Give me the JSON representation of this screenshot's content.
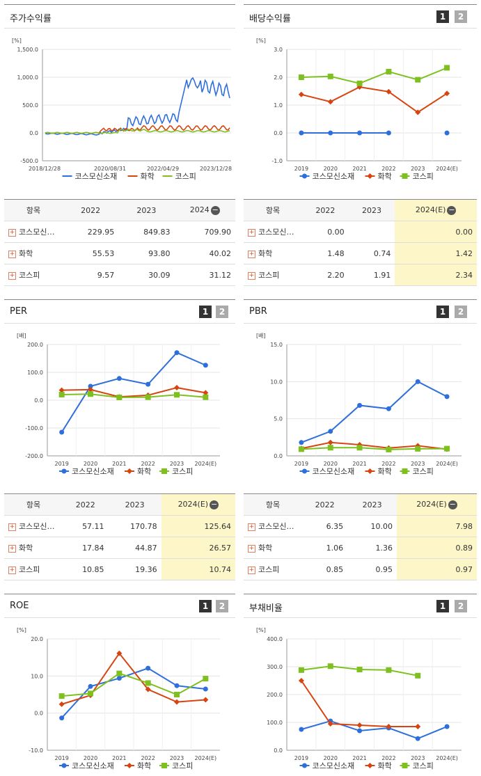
{
  "series_names": [
    "코스모신소재",
    "화학",
    "코스피"
  ],
  "colors": {
    "company": "#2e6fdb",
    "chem": "#d64510",
    "kospi": "#7dc01f"
  },
  "charts": {
    "stock": {
      "title": "주가수익률",
      "unit": "[%]",
      "ylim": [
        -500,
        1500
      ],
      "yticks": [
        "1,500.0",
        "1,000.0",
        "500.0",
        "0.0",
        "-500.0"
      ],
      "xlabels": [
        "2018/12/28",
        "2020/08/31",
        "2022/04/29",
        "2023/12/28"
      ]
    },
    "div": {
      "title": "배당수익률",
      "unit": "[%]",
      "ylim": [
        -1,
        3
      ],
      "yticks": [
        "3.0",
        "2.0",
        "1.0",
        "0.0",
        "-1.0"
      ],
      "categories": [
        "2019",
        "2020",
        "2021",
        "2022",
        "2023",
        "2024(E)"
      ],
      "series": [
        {
          "values": [
            0,
            0,
            0,
            0,
            null,
            0
          ]
        },
        {
          "values": [
            1.38,
            1.12,
            1.65,
            1.48,
            0.74,
            1.42
          ]
        },
        {
          "values": [
            2.0,
            2.03,
            1.78,
            2.2,
            1.91,
            2.34
          ]
        }
      ]
    },
    "per": {
      "title": "PER",
      "unit": "[배]",
      "ylim": [
        -200,
        200
      ],
      "yticks": [
        "200.0",
        "100.0",
        "0.0",
        "-100.0",
        "-200.0"
      ],
      "categories": [
        "2019",
        "2020",
        "2021",
        "2022",
        "2023",
        "2024(E)"
      ],
      "series": [
        {
          "values": [
            -115,
            50,
            78,
            57.11,
            170.78,
            125.64
          ]
        },
        {
          "values": [
            36,
            38,
            12,
            17.84,
            44.87,
            26.57
          ]
        },
        {
          "values": [
            20,
            22,
            10,
            10.85,
            19.36,
            10.74
          ]
        }
      ]
    },
    "pbr": {
      "title": "PBR",
      "unit": "[배]",
      "ylim": [
        0,
        15
      ],
      "yticks": [
        "15.0",
        "10.0",
        "5.0",
        "0.0"
      ],
      "categories": [
        "2019",
        "2020",
        "2021",
        "2022",
        "2023",
        "2024(E)"
      ],
      "series": [
        {
          "values": [
            1.8,
            3.3,
            6.8,
            6.35,
            10.0,
            7.98
          ]
        },
        {
          "values": [
            1.0,
            1.8,
            1.5,
            1.06,
            1.36,
            0.89
          ]
        },
        {
          "values": [
            0.9,
            1.1,
            1.1,
            0.85,
            0.95,
            0.97
          ]
        }
      ]
    },
    "roe": {
      "title": "ROE",
      "unit": "[%]",
      "ylim": [
        -10,
        20
      ],
      "yticks": [
        "20.0",
        "10.0",
        "0.0",
        "-10.0"
      ],
      "categories": [
        "2019",
        "2020",
        "2021",
        "2022",
        "2023",
        "2024(E)"
      ],
      "series": [
        {
          "values": [
            -1.3,
            7.2,
            9.4,
            12.1,
            7.4,
            6.5
          ]
        },
        {
          "values": [
            2.4,
            4.8,
            16.1,
            6.4,
            3.0,
            3.6
          ]
        },
        {
          "values": [
            4.6,
            5.3,
            10.7,
            8.1,
            5.0,
            9.3
          ]
        }
      ]
    },
    "debt": {
      "title": "부채비율",
      "unit": "[%]",
      "ylim": [
        0,
        400
      ],
      "yticks": [
        "400.0",
        "300.0",
        "200.0",
        "100.0",
        "0.0"
      ],
      "categories": [
        "2019",
        "2020",
        "2021",
        "2022",
        "2023",
        "2024(E)"
      ],
      "series": [
        {
          "values": [
            75,
            105,
            70,
            80,
            42,
            85
          ]
        },
        {
          "values": [
            250,
            95,
            90,
            85,
            85,
            null
          ]
        },
        {
          "values": [
            288,
            302,
            290,
            288,
            268,
            null
          ]
        }
      ]
    }
  },
  "tables": {
    "stock": {
      "headers": [
        "항목",
        "2022",
        "2023",
        "2024"
      ],
      "rows": [
        [
          "코스모신…",
          "229.95",
          "849.83",
          "709.90"
        ],
        [
          "화학",
          "55.53",
          "93.80",
          "40.02"
        ],
        [
          "코스피",
          "9.57",
          "30.09",
          "31.12"
        ]
      ]
    },
    "div": {
      "headers": [
        "항목",
        "2022",
        "2023",
        "2024(E)"
      ],
      "rows": [
        [
          "코스모신…",
          "0.00",
          "",
          "0.00"
        ],
        [
          "화학",
          "1.48",
          "0.74",
          "1.42"
        ],
        [
          "코스피",
          "2.20",
          "1.91",
          "2.34"
        ]
      ]
    },
    "per": {
      "headers": [
        "항목",
        "2022",
        "2023",
        "2024(E)"
      ],
      "rows": [
        [
          "코스모신…",
          "57.11",
          "170.78",
          "125.64"
        ],
        [
          "화학",
          "17.84",
          "44.87",
          "26.57"
        ],
        [
          "코스피",
          "10.85",
          "19.36",
          "10.74"
        ]
      ]
    },
    "pbr": {
      "headers": [
        "항목",
        "2022",
        "2023",
        "2024(E)"
      ],
      "rows": [
        [
          "코스모신…",
          "6.35",
          "10.00",
          "7.98"
        ],
        [
          "화학",
          "1.06",
          "1.36",
          "0.89"
        ],
        [
          "코스피",
          "0.85",
          "0.95",
          "0.97"
        ]
      ]
    }
  },
  "pages": [
    "1",
    "2"
  ]
}
